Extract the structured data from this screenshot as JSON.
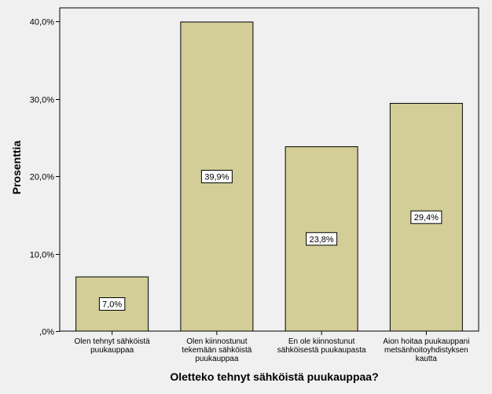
{
  "chart_data": {
    "type": "bar",
    "categories": [
      [
        "Olen tehnyt sähköistä",
        "puukauppaa"
      ],
      [
        "Olen kiinnostunut",
        "tekemään sähköistä",
        "puukauppaa"
      ],
      [
        "En ole kiinnostunut",
        "sähköisestä puukaupasta"
      ],
      [
        "Aion hoitaa puukauppani",
        "metsänhoitoyhdistyksen",
        "kautta"
      ]
    ],
    "values": [
      7.0,
      39.9,
      23.8,
      29.4
    ],
    "data_labels": [
      "7,0%",
      "39,9%",
      "23,8%",
      "29,4%"
    ],
    "xlabel": "Oletteko tehnyt sähköistä puukauppaa?",
    "ylabel": "Prosenttia",
    "ylim": [
      0,
      40
    ],
    "yticks": [
      0,
      10,
      20,
      30,
      40
    ],
    "ytick_labels": [
      ",0%",
      "10,0%",
      "20,0%",
      "30,0%",
      "40,0%"
    ],
    "bar_color": "#d3ce97",
    "background_color": "#f0f0f0",
    "grid": false,
    "legend": "none"
  }
}
